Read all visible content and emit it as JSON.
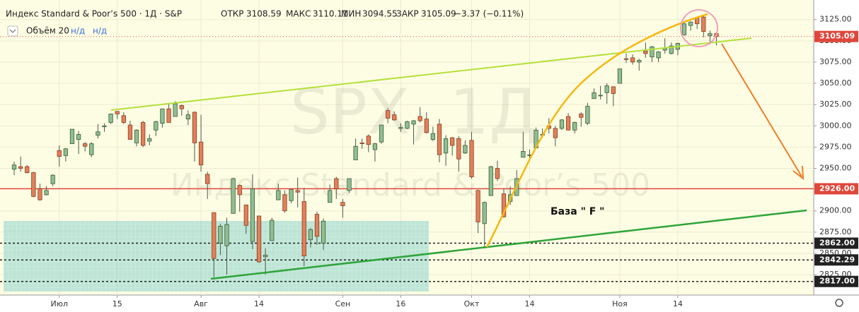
{
  "chart_data": {
    "type": "candlestick",
    "title": "Индекс Standard & Poor’s 500 · 1Д · S&P",
    "header": {
      "open_label": "ОТКР",
      "high_label": "МАКС",
      "low_label": "МИН",
      "close_label": "ЗАКР",
      "change": "−3.37 (−0.11%)"
    },
    "volume_label": "Объём 20",
    "volume_values": [
      "н/д",
      "н/д"
    ],
    "watermark": [
      "SPX, 1Д",
      "Индекс Standard & Poor’s 500"
    ],
    "annotation": "База  \" F \"",
    "up_color": "#8fbf8f",
    "down_color": "#e0805a",
    "ohlc": [
      [
        2949,
        2958,
        2942,
        2954
      ],
      [
        2952,
        2964,
        2946,
        2950
      ],
      [
        2952,
        2954,
        2944,
        2945
      ],
      [
        2945,
        2946,
        2916,
        2917
      ],
      [
        2926,
        2932,
        2912,
        2913
      ],
      [
        2919,
        2929,
        2918,
        2924
      ],
      [
        2932,
        2943,
        2929,
        2942
      ],
      [
        2971,
        2977,
        2952,
        2964
      ],
      [
        2965,
        2974,
        2958,
        2973
      ],
      [
        2979,
        2996,
        2979,
        2996
      ],
      [
        2984,
        2994,
        2967,
        2990
      ],
      [
        2979,
        2981,
        2970,
        2976
      ],
      [
        2966,
        2981,
        2963,
        2979
      ],
      [
        2989,
        3002,
        2985,
        2993
      ],
      [
        2999,
        3003,
        2993,
        3000
      ],
      [
        3004,
        3014,
        3002,
        3014
      ],
      [
        3017,
        3017,
        3008,
        3014
      ],
      [
        3012,
        3016,
        3002,
        3004
      ],
      [
        3001,
        3006,
        2984,
        2984
      ],
      [
        2980,
        2996,
        2976,
        2995
      ],
      [
        3004,
        3006,
        2975,
        2977
      ],
      [
        2982,
        2990,
        2977,
        2985
      ],
      [
        2995,
        3006,
        2988,
        3005
      ],
      [
        3003,
        3020,
        2998,
        3020
      ],
      [
        3020,
        3026,
        3004,
        3004
      ],
      [
        3011,
        3029,
        3011,
        3026
      ],
      [
        3024,
        3025,
        3012,
        3020
      ],
      [
        3008,
        3018,
        3001,
        3013
      ],
      [
        3016,
        3017,
        2958,
        2980
      ],
      [
        2981,
        3013,
        2946,
        2954
      ],
      [
        2943,
        2946,
        2914,
        2932
      ],
      [
        2898,
        2898,
        2822,
        2844
      ],
      [
        2862,
        2885,
        2848,
        2882
      ],
      [
        2859,
        2892,
        2825,
        2884
      ],
      [
        2897,
        2939,
        2897,
        2938
      ],
      [
        2930,
        2931,
        2899,
        2919
      ],
      [
        2907,
        2907,
        2873,
        2883
      ],
      [
        2864,
        2943,
        2855,
        2926
      ],
      [
        2894,
        2894,
        2839,
        2840
      ],
      [
        2846,
        2856,
        2825,
        2848
      ],
      [
        2865,
        2892,
        2865,
        2889
      ],
      [
        2913,
        2932,
        2913,
        2924
      ],
      [
        2919,
        2924,
        2898,
        2900
      ],
      [
        2912,
        2925,
        2909,
        2925
      ],
      [
        2924,
        2939,
        2904,
        2922
      ],
      [
        2911,
        2927,
        2835,
        2847
      ],
      [
        2866,
        2880,
        2857,
        2878
      ],
      [
        2896,
        2899,
        2860,
        2870
      ],
      [
        2862,
        2891,
        2854,
        2888
      ],
      [
        2910,
        2931,
        2910,
        2924
      ],
      [
        2938,
        2940,
        2914,
        2926
      ],
      [
        2910,
        2914,
        2892,
        2906
      ],
      [
        2924,
        2938,
        2921,
        2938
      ],
      [
        2960,
        2985,
        2960,
        2976
      ],
      [
        2980,
        2985,
        2973,
        2979
      ],
      [
        2988,
        2990,
        2969,
        2978
      ],
      [
        2972,
        2980,
        2958,
        2979
      ],
      [
        2981,
        3001,
        2979,
        3001
      ],
      [
        3018,
        3021,
        3003,
        3009
      ],
      [
        3013,
        3017,
        3006,
        3007
      ],
      [
        2997,
        3003,
        2993,
        2998
      ],
      [
        2997,
        3006,
        2996,
        3005
      ],
      [
        3002,
        3007,
        2978,
        3006
      ],
      [
        3011,
        3022,
        3004,
        3006
      ],
      [
        3008,
        3016,
        2991,
        2992
      ],
      [
        2984,
        2999,
        2982,
        2991
      ],
      [
        3002,
        3008,
        2957,
        2966
      ],
      [
        2968,
        2989,
        2953,
        2985
      ],
      [
        2986,
        2987,
        2965,
        2977
      ],
      [
        2985,
        2988,
        2946,
        2961
      ],
      [
        2968,
        2983,
        2967,
        2977
      ],
      [
        2983,
        2993,
        2938,
        2940
      ],
      [
        2924,
        2925,
        2874,
        2887
      ],
      [
        2885,
        2911,
        2856,
        2910
      ],
      [
        2918,
        2953,
        2918,
        2952
      ],
      [
        2950,
        2959,
        2935,
        2938
      ],
      [
        2920,
        2926,
        2892,
        2893
      ],
      [
        2911,
        2929,
        2907,
        2919
      ],
      [
        2918,
        2948,
        2918,
        2938
      ],
      [
        2963,
        2993,
        2963,
        2970
      ],
      [
        2965,
        2972,
        2962,
        2966
      ],
      [
        2974,
        2998,
        2974,
        2995
      ],
      [
        2989,
        2997,
        2986,
        2990
      ],
      [
        3000,
        3009,
        2991,
        2997
      ],
      [
        2997,
        3000,
        2976,
        2986
      ],
      [
        2997,
        3008,
        2995,
        3007
      ],
      [
        3011,
        3015,
        2995,
        2995
      ],
      [
        2995,
        3005,
        2991,
        3004
      ],
      [
        3014,
        3016,
        2999,
        3010
      ],
      [
        3003,
        3027,
        3001,
        3023
      ],
      [
        3032,
        3044,
        3032,
        3039
      ],
      [
        3036,
        3047,
        3031,
        3036
      ],
      [
        3039,
        3050,
        3026,
        3047
      ],
      [
        3046,
        3046,
        3023,
        3038
      ],
      [
        3050,
        3067,
        3050,
        3067
      ],
      [
        3079,
        3085,
        3074,
        3078
      ],
      [
        3080,
        3084,
        3072,
        3075
      ],
      [
        3075,
        3079,
        3065,
        3077
      ],
      [
        3088,
        3098,
        3080,
        3085
      ],
      [
        3081,
        3094,
        3075,
        3093
      ],
      [
        3080,
        3088,
        3075,
        3087
      ],
      [
        3089,
        3103,
        3085,
        3091
      ],
      [
        3085,
        3098,
        3084,
        3094
      ],
      [
        3090,
        3098,
        3083,
        3097
      ],
      [
        3107,
        3121,
        3106,
        3120
      ],
      [
        3118,
        3123,
        3112,
        3122
      ],
      [
        3127,
        3128,
        3114,
        3120
      ],
      [
        3128,
        3130,
        3104,
        3111
      ],
      [
        3106,
        3112,
        3096,
        3108.46
      ],
      [
        3108.59,
        3110.11,
        3094.55,
        3105.09
      ]
    ],
    "xlim": [
      -2.2,
      124.1
    ],
    "xticks": [
      {
        "value": 7,
        "label": "Июл"
      },
      {
        "value": 16,
        "label": "15"
      },
      {
        "value": 29,
        "label": "Авг"
      },
      {
        "value": 38,
        "label": "14"
      },
      {
        "value": 51,
        "label": "Сен"
      },
      {
        "value": 60,
        "label": "16"
      },
      {
        "value": 71,
        "label": "Окт"
      },
      {
        "value": 80,
        "label": "14"
      },
      {
        "value": 94,
        "label": "Ноя"
      },
      {
        "value": 103,
        "label": "14"
      }
    ],
    "ylim": [
      2801,
      3148
    ],
    "yticks": [
      {
        "value": 2825,
        "label": "2825.00"
      },
      {
        "value": 2850,
        "label": "2850.00"
      },
      {
        "value": 2875,
        "label": "2875.00"
      },
      {
        "value": 2900,
        "label": "2900.00"
      },
      {
        "value": 2950,
        "label": "2950.00"
      },
      {
        "value": 2975,
        "label": "2975.00"
      },
      {
        "value": 3000,
        "label": "3000.00"
      },
      {
        "value": 3025,
        "label": "3025.00"
      },
      {
        "value": 3050,
        "label": "3050.00"
      },
      {
        "value": 3075,
        "label": "3075.00"
      },
      {
        "value": 3100,
        "label": "3100.00"
      },
      {
        "value": 3125,
        "label": "3125.00"
      }
    ],
    "price_lines": [
      {
        "value": 2926,
        "label": "2926.00",
        "color": "#e0463a",
        "style": "solid"
      },
      {
        "value": 2862,
        "label": "2862.00",
        "color": "#222222",
        "style": "dotted"
      },
      {
        "value": 2842.29,
        "label": "2842.29",
        "color": "#222222",
        "style": "dotted"
      },
      {
        "value": 2817,
        "label": "2817.00",
        "color": "#222222",
        "style": "dotted"
      }
    ],
    "last_price_label": "3105.09",
    "grid": true
  }
}
